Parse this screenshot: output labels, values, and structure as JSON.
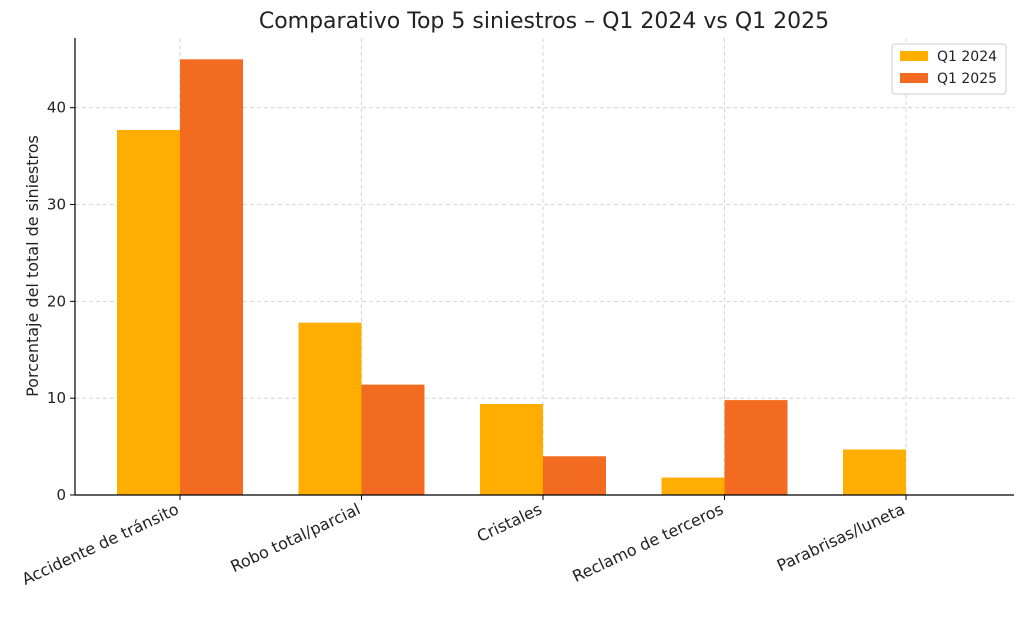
{
  "chart_data": {
    "type": "bar",
    "title": "Comparativo Top 5 siniestros – Q1 2024 vs Q1 2025",
    "xlabel": "",
    "ylabel": "Porcentaje del total de siniestros",
    "categories": [
      "Accidente de tránsito",
      "Robo total/parcial",
      "Cristales",
      "Reclamo de terceros",
      "Parabrisas/luneta"
    ],
    "series": [
      {
        "name": "Q1 2024",
        "color": "#FFAE00",
        "values": [
          37.7,
          17.8,
          9.4,
          1.8,
          4.7
        ]
      },
      {
        "name": "Q1 2025",
        "color": "#F26B21",
        "values": [
          45.0,
          11.4,
          4.0,
          9.8,
          0.0
        ]
      }
    ],
    "ylim": [
      0,
      47.2
    ],
    "yticks": [
      0,
      10,
      20,
      30,
      40
    ],
    "grid": true,
    "legend_position": "top-right"
  }
}
